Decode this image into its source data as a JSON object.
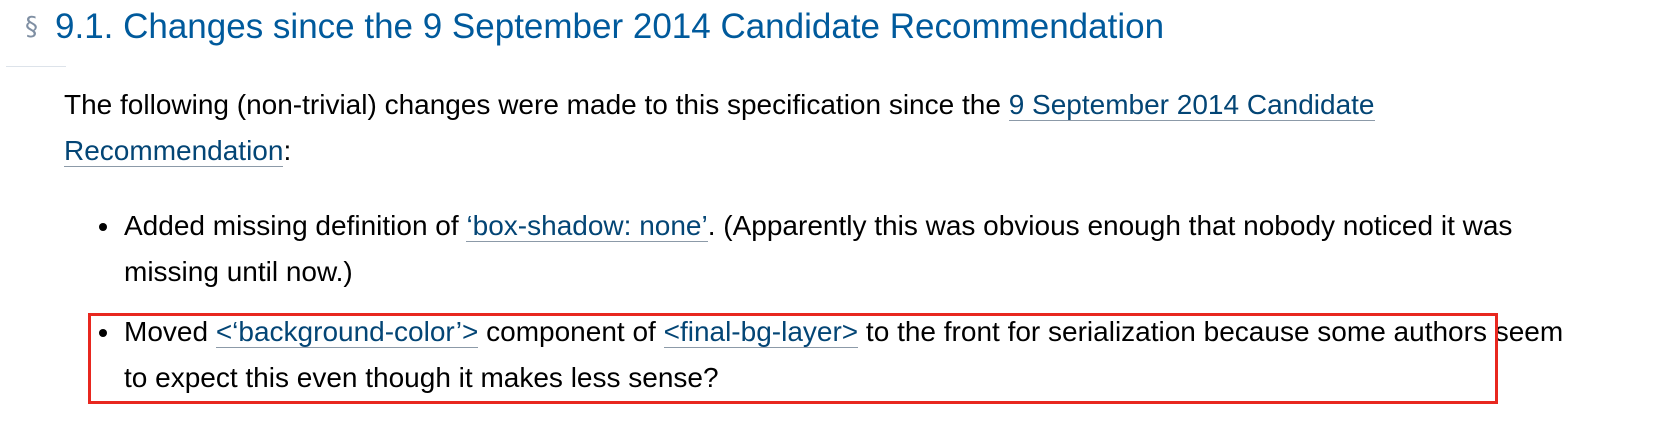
{
  "heading": {
    "section_mark": "§",
    "text": "9.1. Changes since the 9 September 2014 Candidate Recommendation"
  },
  "intro": {
    "text_before": "The following (non-trivial) changes were made to this specification since the ",
    "link_text": "9 September 2014 Candidate Recommendation",
    "text_after": ":"
  },
  "changes": [
    {
      "before": "Added missing definition of ",
      "link_text": "‘box-shadow: none’",
      "after": ". (Apparently this was obvious enough that nobody noticed it was missing until now.)"
    },
    {
      "before": "Moved ",
      "link1_text": "<‘background-color’>",
      "middle": " component of ",
      "link2_text": "<final-bg-layer>",
      "after": " to the front for serialization because some authors seem to expect this even though it makes less sense?"
    }
  ],
  "colors": {
    "heading": "#005a9c",
    "link": "#034575",
    "highlight_border": "#e8271f"
  }
}
